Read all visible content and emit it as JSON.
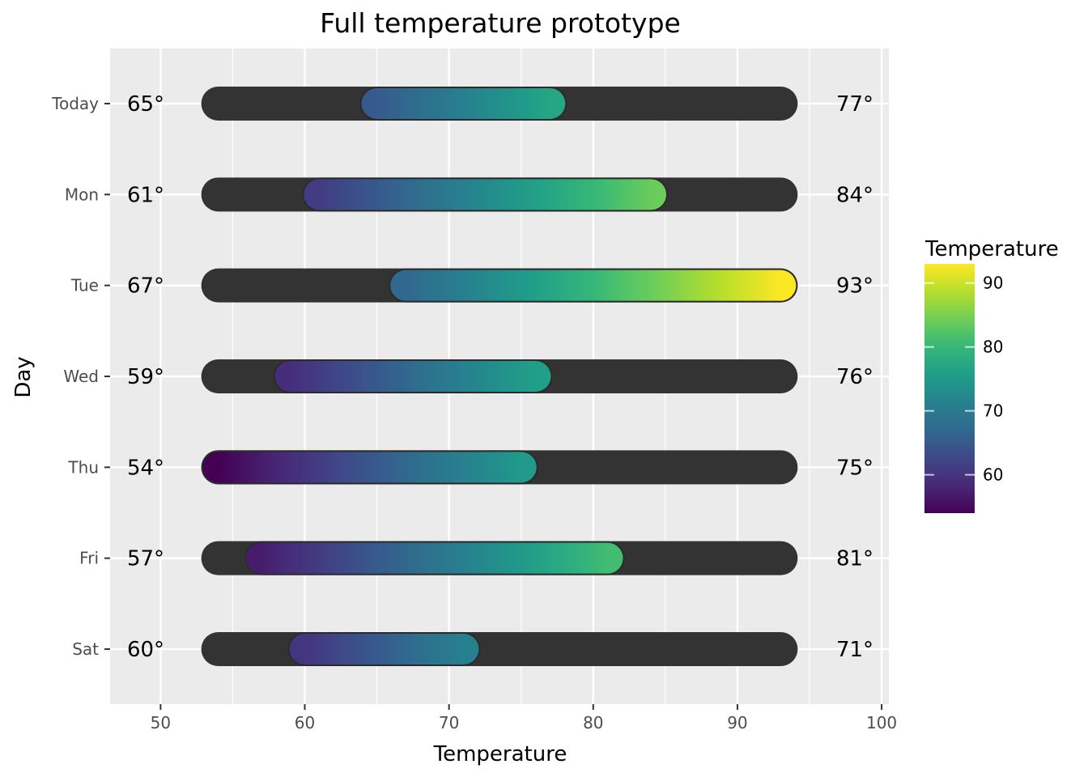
{
  "chart_data": {
    "type": "range-bar",
    "title": "Full temperature prototype",
    "xlabel": "Temperature",
    "ylabel": "Day",
    "xlim": [
      46.5,
      100.5
    ],
    "x_ticks": [
      50,
      60,
      70,
      80,
      90,
      100
    ],
    "background_range": [
      54,
      93
    ],
    "categories": [
      "Today",
      "Mon",
      "Tue",
      "Wed",
      "Thu",
      "Fri",
      "Sat"
    ],
    "low": [
      65,
      61,
      67,
      59,
      54,
      57,
      60
    ],
    "high": [
      77,
      84,
      93,
      76,
      75,
      81,
      71
    ],
    "low_labels": [
      "65°",
      "61°",
      "67°",
      "59°",
      "54°",
      "57°",
      "60°"
    ],
    "high_labels": [
      "77°",
      "84°",
      "93°",
      "76°",
      "75°",
      "81°",
      "71°"
    ],
    "grid": true,
    "legend": {
      "title": "Temperature",
      "position": "right",
      "ticks": [
        60,
        70,
        80,
        90
      ],
      "tick_labels": [
        "60",
        "70",
        "80",
        "90"
      ],
      "range": [
        54,
        93
      ]
    },
    "colors": {
      "panel": "#ebebeb",
      "grid": "#ffffff",
      "background_bar": "#333333",
      "colormap": "viridis"
    }
  }
}
